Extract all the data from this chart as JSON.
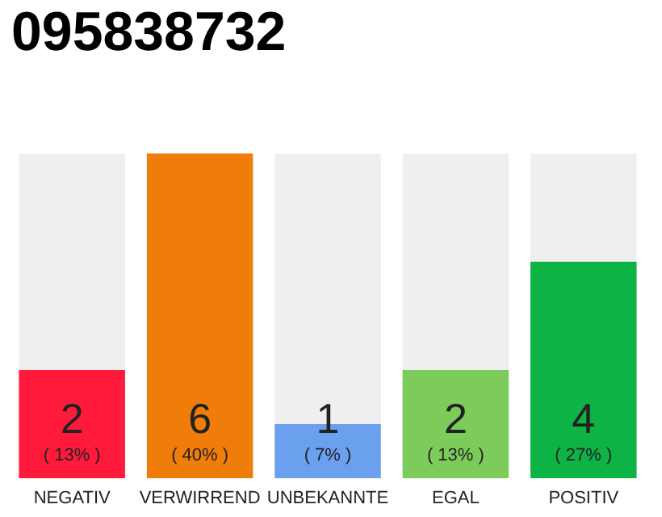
{
  "chart_data": {
    "type": "bar",
    "title": "095838732",
    "categories": [
      "NEGATIV",
      "VERWIRREND",
      "UNBEKANNTE",
      "EGAL",
      "POSITIV"
    ],
    "values": [
      2,
      6,
      1,
      2,
      4
    ],
    "colors": [
      "#ff1a3c",
      "#f07d0a",
      "#6aa0ee",
      "#7dcb5a",
      "#0db345"
    ],
    "value_labels": [
      "2\n( 13% )",
      "6\n( 40% )",
      "1\n( 7% )",
      "2\n( 13% )",
      "4\n( 27% )"
    ]
  }
}
